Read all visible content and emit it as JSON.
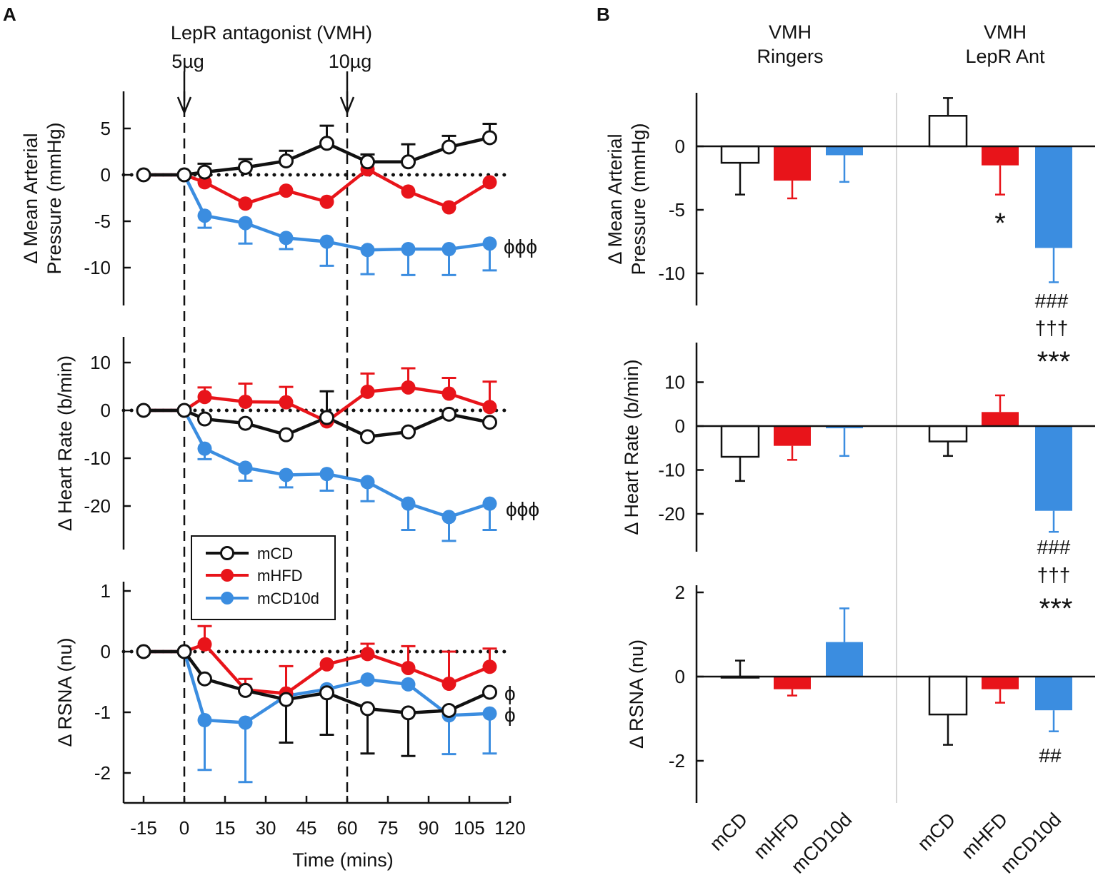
{
  "panel_labels": [
    "A",
    "B"
  ],
  "colors": {
    "mCD": "#111111",
    "mHFD": "#e8141a",
    "mCD10d": "#3b8de0"
  },
  "legend": [
    "mCD",
    "mHFD",
    "mCD10d"
  ],
  "annotations": {
    "header": "LepR antagonist (VMH)",
    "dose1": "5µg",
    "dose2": "10µg",
    "group1": [
      "VMH",
      "Ringers"
    ],
    "group2": [
      "VMH",
      "LepR Ant"
    ]
  },
  "chart_data": [
    {
      "type": "line",
      "panel": "A",
      "title": "LepR antagonist (VMH)",
      "xlabel": "Time (mins)",
      "ylabel": [
        "Δ Mean Arterial",
        "Pressure (mmHg)"
      ],
      "x": [
        -15,
        0,
        7.5,
        22.5,
        37.5,
        52.5,
        67.5,
        82.5,
        97.5,
        112.5
      ],
      "xticks": [
        -15,
        0,
        15,
        30,
        45,
        60,
        75,
        90,
        105,
        120
      ],
      "ylim": [
        -14,
        9
      ],
      "yticks": [
        5,
        0,
        -5,
        -10
      ],
      "series": [
        {
          "name": "mCD",
          "values": [
            0,
            0,
            0.3,
            0.8,
            1.5,
            3.4,
            1.4,
            1.4,
            3.0,
            4.0
          ],
          "err": [
            0,
            0,
            0.9,
            0.9,
            1.1,
            1.9,
            0.8,
            1.9,
            1.2,
            1.5
          ],
          "err_dir": "up",
          "filled": false
        },
        {
          "name": "mHFD",
          "values": [
            0,
            0,
            -0.8,
            -3.1,
            -1.7,
            -2.9,
            0.6,
            -1.8,
            -3.5,
            -0.8
          ],
          "err": [
            0,
            0,
            0,
            0,
            0,
            0,
            0,
            0,
            0,
            0
          ],
          "err_dir": "up",
          "filled": true
        },
        {
          "name": "mCD10d",
          "values": [
            0,
            0,
            -4.4,
            -5.2,
            -6.8,
            -7.2,
            -8.1,
            -8.0,
            -8.0,
            -7.4
          ],
          "err": [
            0,
            0,
            1.3,
            2.2,
            1.2,
            2.6,
            2.6,
            2.8,
            2.8,
            2.9
          ],
          "err_dir": "down",
          "filled": true
        }
      ],
      "significance": "ϕϕϕ"
    },
    {
      "type": "line",
      "panel": "A",
      "ylabel": "Δ Heart Rate (b/min)",
      "x": [
        -15,
        0,
        7.5,
        22.5,
        37.5,
        52.5,
        67.5,
        82.5,
        97.5,
        112.5
      ],
      "ylim": [
        -29,
        15
      ],
      "yticks": [
        10,
        0,
        -10,
        -20
      ],
      "series": [
        {
          "name": "mCD",
          "values": [
            0,
            0,
            -1.8,
            -2.7,
            -5.1,
            -1.5,
            -5.5,
            -4.5,
            -0.8,
            -2.5
          ],
          "err": [
            0,
            0,
            0,
            0,
            0,
            5.5,
            0,
            0,
            0,
            0
          ],
          "err_dir": "up",
          "filled": false
        },
        {
          "name": "mHFD",
          "values": [
            0,
            0,
            2.8,
            1.8,
            1.7,
            -2.3,
            3.9,
            4.8,
            3.5,
            0.7
          ],
          "err": [
            0,
            0,
            2.0,
            3.8,
            3.2,
            0,
            3.8,
            4.0,
            3.3,
            5.3
          ],
          "err_dir": "up",
          "filled": true
        },
        {
          "name": "mCD10d",
          "values": [
            0,
            0,
            -8.0,
            -12.0,
            -13.5,
            -13.3,
            -15.0,
            -19.5,
            -22.3,
            -19.5
          ],
          "err": [
            0,
            0,
            2.2,
            2.7,
            2.6,
            3.5,
            4.0,
            5.5,
            5.0,
            5.5
          ],
          "err_dir": "down",
          "filled": true
        }
      ],
      "significance": "ϕϕϕ"
    },
    {
      "type": "line",
      "panel": "A",
      "ylabel": "Δ RSNA (nu)",
      "x": [
        -15,
        0,
        7.5,
        22.5,
        37.5,
        52.5,
        67.5,
        82.5,
        97.5,
        112.5
      ],
      "ylim": [
        -2.5,
        1
      ],
      "yticks": [
        1,
        0,
        -1,
        -2
      ],
      "series": [
        {
          "name": "mCD",
          "values": [
            0,
            0,
            -0.45,
            -0.64,
            -0.79,
            -0.68,
            -0.94,
            -1.01,
            -0.97,
            -0.67
          ],
          "err": [
            0,
            0,
            0,
            0,
            0.71,
            0.69,
            0.74,
            0.71,
            0,
            0
          ],
          "err_dir": "down",
          "filled": false
        },
        {
          "name": "mHFD",
          "values": [
            0,
            0,
            0.12,
            -0.63,
            -0.69,
            -0.21,
            -0.04,
            -0.27,
            -0.53,
            -0.25
          ],
          "err": [
            0,
            0,
            0.3,
            0.18,
            0.45,
            0,
            0.17,
            0.36,
            0.53,
            0.3
          ],
          "err_dir": "up",
          "filled": true
        },
        {
          "name": "mCD10d",
          "values": [
            0,
            0,
            -1.13,
            -1.17,
            -0.73,
            -0.62,
            -0.46,
            -0.54,
            -1.05,
            -1.02
          ],
          "err": [
            0,
            0,
            0.82,
            0.98,
            0,
            0,
            0,
            0,
            0.64,
            0.66
          ],
          "err_dir": "down",
          "filled": true
        }
      ],
      "significance": [
        "ϕ",
        "ϕ"
      ]
    },
    {
      "type": "bar",
      "panel": "B",
      "ylabel": [
        "Δ Mean Arterial",
        "Pressure (mmHg)"
      ],
      "groups": [
        "VMH Ringers",
        "VMH LepR Ant"
      ],
      "categories": [
        "mCD",
        "mHFD",
        "mCD10d"
      ],
      "ylim": [
        -12.5,
        4
      ],
      "yticks": [
        0,
        -5,
        -10
      ],
      "values": [
        [
          -1.3,
          -2.7,
          -0.7
        ],
        [
          2.4,
          -1.5,
          -8.0
        ]
      ],
      "err": [
        [
          2.5,
          1.4,
          2.1
        ],
        [
          1.4,
          2.3,
          2.7
        ]
      ],
      "significance": {
        "mHFD_lepr": "*",
        "mCD10d_lepr": [
          "###",
          "†††",
          "***"
        ]
      }
    },
    {
      "type": "bar",
      "panel": "B",
      "ylabel": "Δ Heart Rate (b/min)",
      "groups": [
        "VMH Ringers",
        "VMH LepR Ant"
      ],
      "categories": [
        "mCD",
        "mHFD",
        "mCD10d"
      ],
      "ylim": [
        -29,
        19
      ],
      "yticks": [
        10,
        0,
        -10,
        -20
      ],
      "values": [
        [
          -7.0,
          -4.5,
          -0.5
        ],
        [
          -3.5,
          3.2,
          -19.3
        ]
      ],
      "err": [
        [
          5.5,
          3.2,
          6.3
        ],
        [
          3.3,
          3.8,
          4.8
        ]
      ],
      "significance": {
        "mCD10d_lepr": [
          "###",
          "†††",
          "***"
        ]
      }
    },
    {
      "type": "bar",
      "panel": "B",
      "ylabel": "Δ RSNA (nu)",
      "groups": [
        "VMH Ringers",
        "VMH LepR Ant"
      ],
      "categories": [
        "mCD",
        "mHFD",
        "mCD10d"
      ],
      "ylim": [
        -2.95,
        2.2
      ],
      "yticks": [
        2,
        0,
        -2
      ],
      "values": [
        [
          0,
          -0.3,
          0.82
        ],
        [
          -0.9,
          -0.3,
          -0.8
        ]
      ],
      "err": [
        [
          0.38,
          0.15,
          0.8
        ],
        [
          0.72,
          0.32,
          0.5
        ]
      ],
      "significance": {
        "mCD10d_lepr": "##"
      }
    }
  ]
}
